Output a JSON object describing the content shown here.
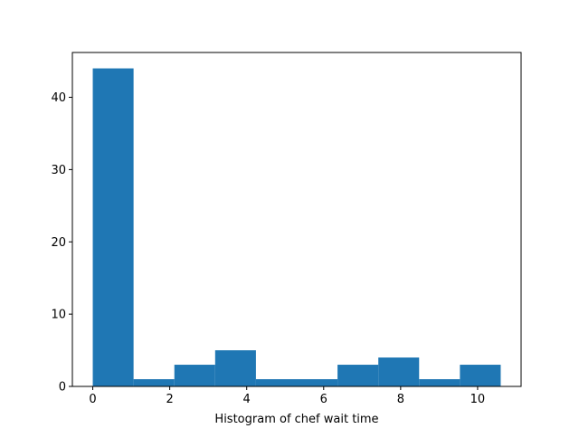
{
  "chart_data": {
    "type": "bar",
    "subtype": "histogram",
    "title": "",
    "xlabel": "Histogram of chef wait time",
    "ylabel": "",
    "bins": [
      {
        "x0": 0.0,
        "x1": 1.06,
        "count": 44
      },
      {
        "x0": 1.06,
        "x1": 2.12,
        "count": 1
      },
      {
        "x0": 2.12,
        "x1": 3.18,
        "count": 3
      },
      {
        "x0": 3.18,
        "x1": 4.24,
        "count": 5
      },
      {
        "x0": 4.24,
        "x1": 5.3,
        "count": 1
      },
      {
        "x0": 5.3,
        "x1": 6.36,
        "count": 1
      },
      {
        "x0": 6.36,
        "x1": 7.42,
        "count": 3
      },
      {
        "x0": 7.42,
        "x1": 8.48,
        "count": 4
      },
      {
        "x0": 8.48,
        "x1": 9.54,
        "count": 1
      },
      {
        "x0": 9.54,
        "x1": 10.6,
        "count": 3
      }
    ],
    "xlim": [
      -0.53,
      11.13
    ],
    "ylim": [
      0,
      46.2
    ],
    "x_ticks": [
      0,
      2,
      4,
      6,
      8,
      10
    ],
    "y_ticks": [
      0,
      10,
      20,
      30,
      40
    ],
    "x_tick_labels": [
      "0",
      "2",
      "4",
      "6",
      "8",
      "10"
    ],
    "y_tick_labels": [
      "0",
      "10",
      "20",
      "30",
      "40"
    ],
    "bar_color": "#1f77b4",
    "grid": false,
    "legend": "none"
  }
}
